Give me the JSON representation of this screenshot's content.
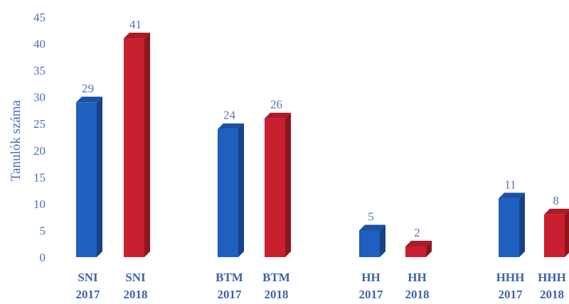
{
  "chart_data": {
    "type": "bar",
    "ylabel": "Tanulók száma",
    "ylim": [
      0,
      45
    ],
    "yticks": [
      0,
      5,
      10,
      15,
      20,
      25,
      30,
      35,
      40,
      45
    ],
    "grid": false,
    "categories": [
      {
        "line1": "SNI",
        "line2": "2017"
      },
      {
        "line1": "SNI",
        "line2": "2018"
      },
      {
        "line1": "BTM",
        "line2": "2017"
      },
      {
        "line1": "BTM",
        "line2": "2018"
      },
      {
        "line1": "HH",
        "line2": "2017"
      },
      {
        "line1": "HH",
        "line2": "2018"
      },
      {
        "line1": "HHH",
        "line2": "2017"
      },
      {
        "line1": "HHH",
        "line2": "2018"
      }
    ],
    "values": [
      29,
      41,
      24,
      26,
      5,
      2,
      11,
      8
    ],
    "colors": {
      "2017": "#1f5fbf",
      "2018": "#c8202e"
    }
  }
}
